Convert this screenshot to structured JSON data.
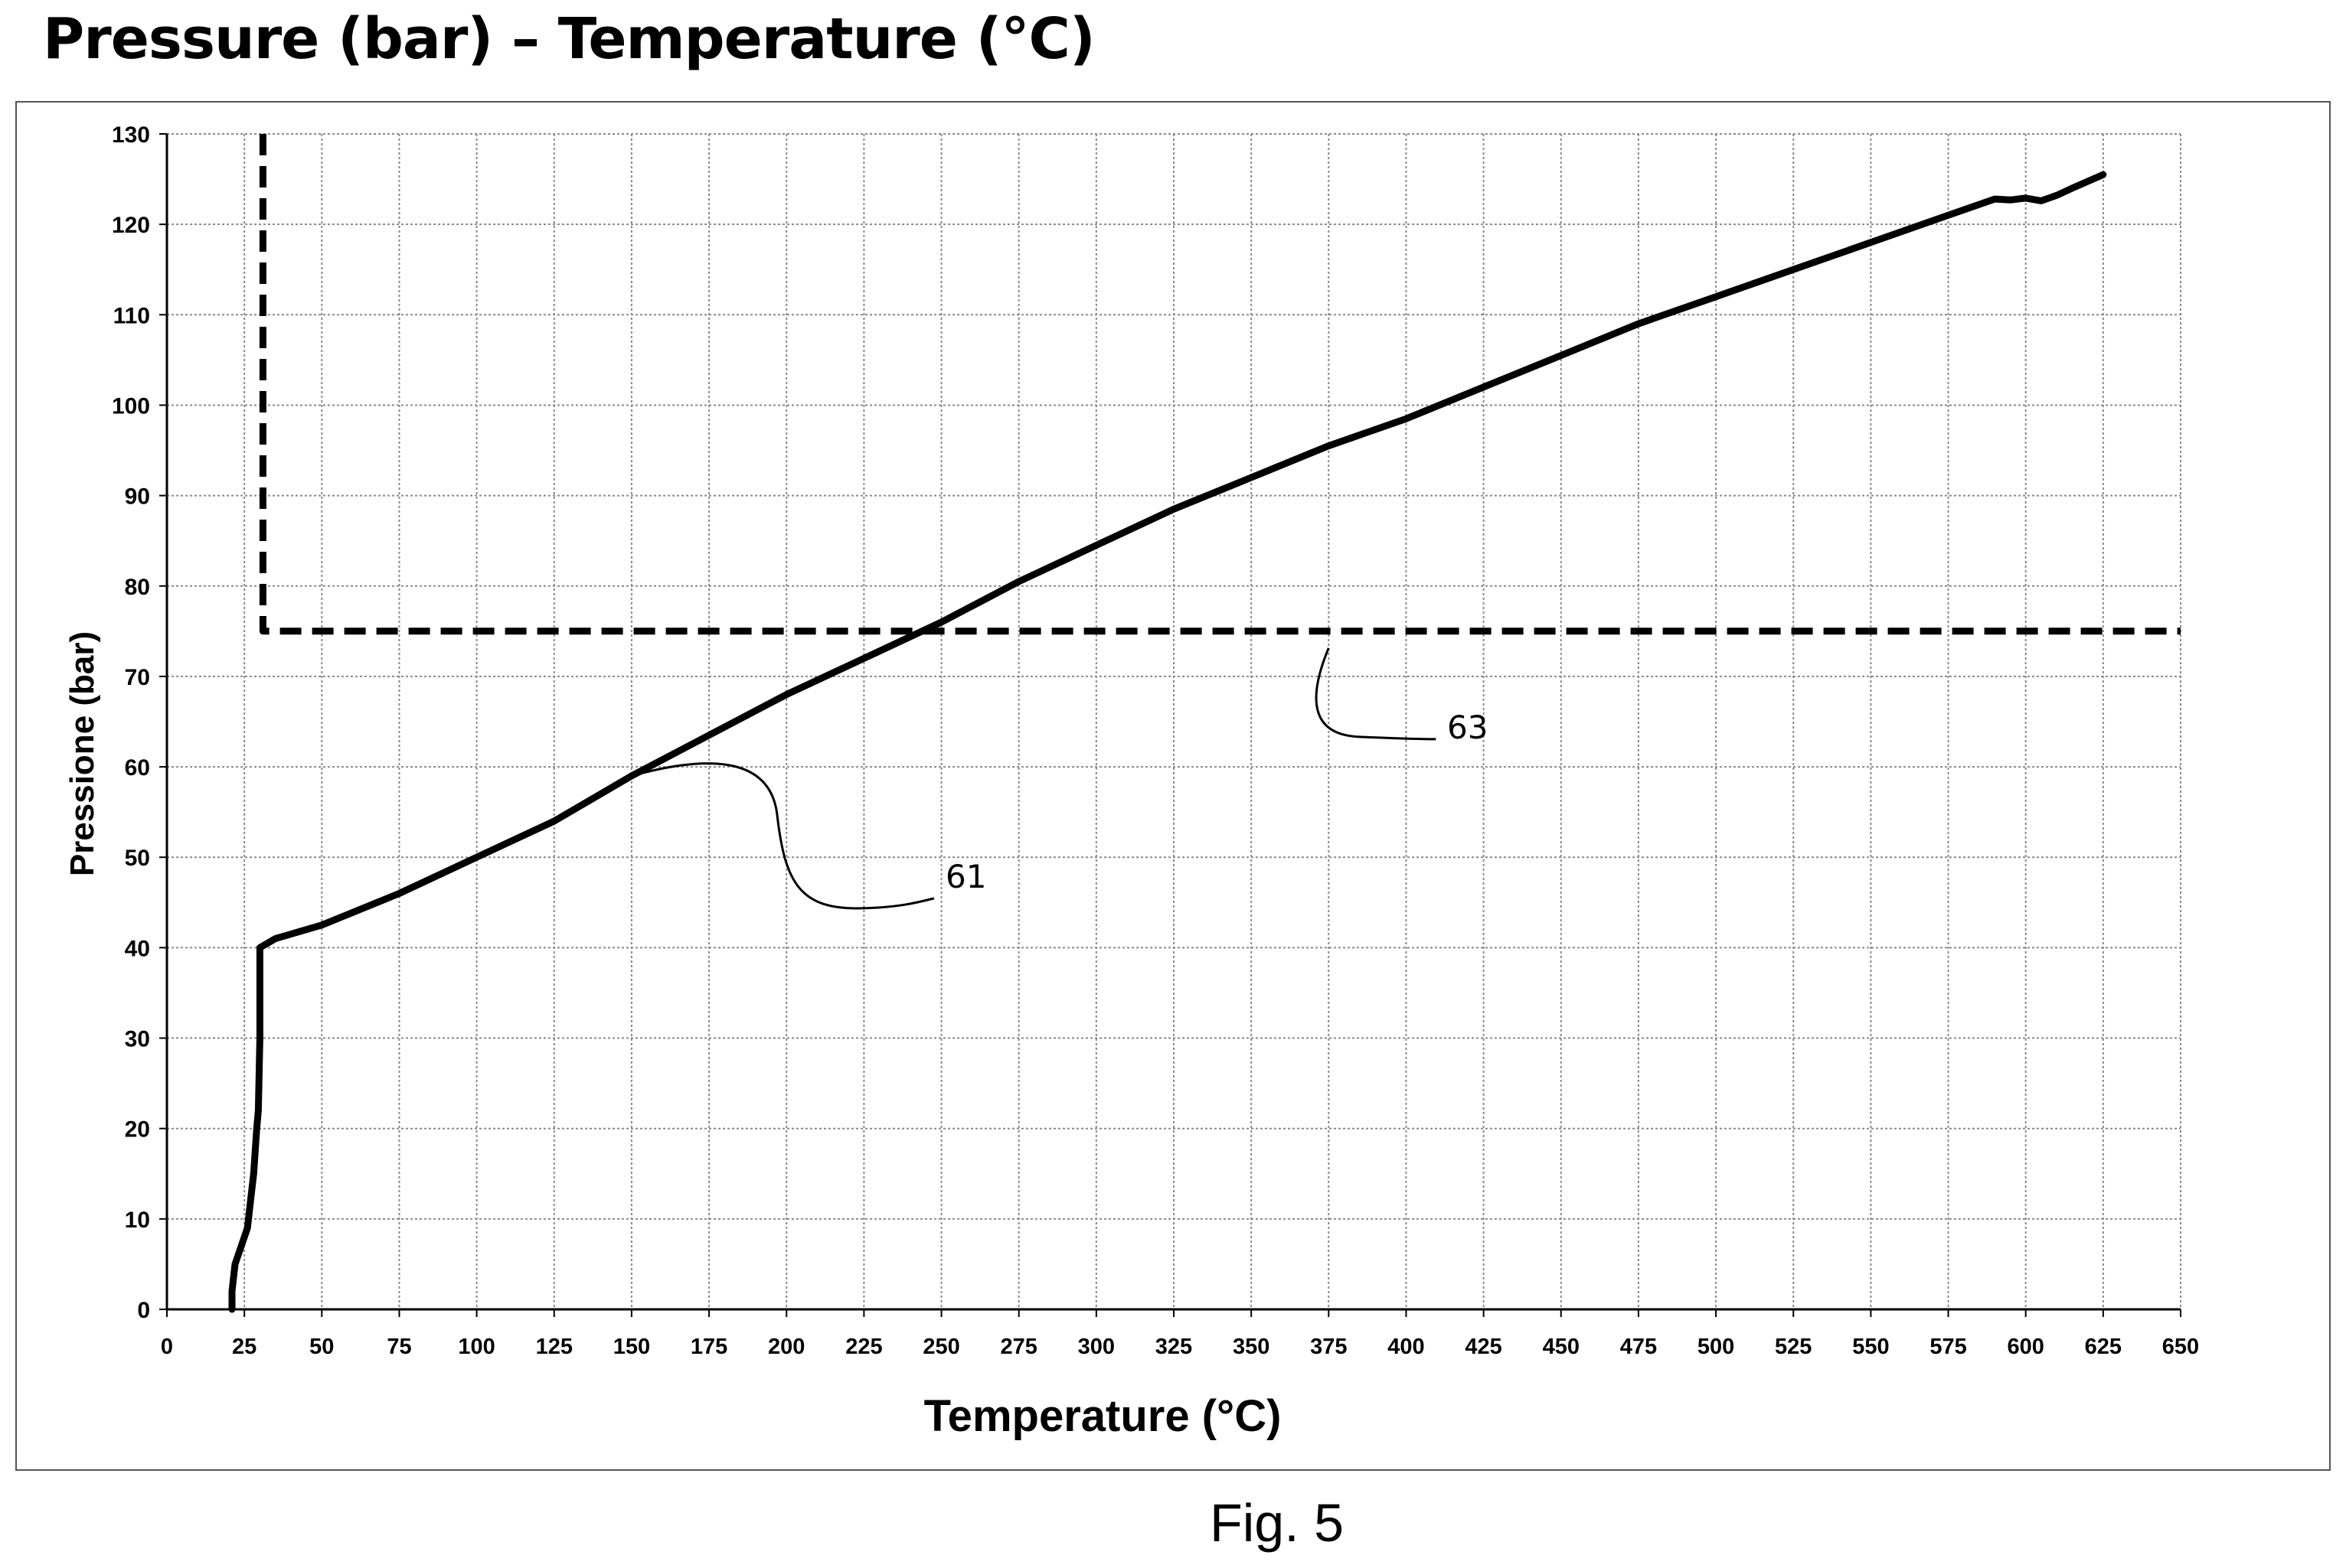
{
  "page": {
    "title": "Pressure (bar) – Temperature (°C)",
    "caption": "Fig. 5"
  },
  "chart_data": {
    "type": "line",
    "xlabel": "Temperature (°C)",
    "ylabel": "Pressione (bar)",
    "xlim": [
      0,
      650
    ],
    "ylim": [
      0,
      130
    ],
    "x_ticks": [
      0,
      25,
      50,
      75,
      100,
      125,
      150,
      175,
      200,
      225,
      250,
      275,
      300,
      325,
      350,
      375,
      400,
      425,
      450,
      475,
      500,
      525,
      550,
      575,
      600,
      625,
      650
    ],
    "y_ticks": [
      0,
      10,
      20,
      30,
      40,
      50,
      60,
      70,
      80,
      90,
      100,
      110,
      120,
      130
    ],
    "grid": true,
    "series": [
      {
        "label": "61",
        "style": "solid",
        "color": "#000000",
        "x": [
          21,
          21,
          22,
          24,
          26,
          27,
          28,
          29,
          29.5,
          30,
          30,
          35,
          50,
          75,
          100,
          125,
          150,
          175,
          200,
          225,
          250,
          275,
          300,
          325,
          350,
          375,
          400,
          425,
          450,
          475,
          500,
          525,
          550,
          575,
          590,
          595,
          600,
          605,
          610,
          615,
          625
        ],
        "y": [
          0,
          2,
          5,
          7,
          9,
          12,
          15,
          20,
          22,
          30,
          40,
          41,
          42.5,
          46,
          50,
          54,
          59,
          63.5,
          68,
          72,
          76,
          80.5,
          84.5,
          88.5,
          92,
          95.5,
          98.5,
          102,
          105.5,
          109,
          112,
          115,
          118,
          121,
          122.8,
          122.7,
          122.9,
          122.6,
          123.2,
          124,
          125.5
        ]
      },
      {
        "label": "63",
        "style": "dashed",
        "color": "#000000",
        "x": [
          31,
          31,
          650
        ],
        "y": [
          130,
          75,
          75
        ]
      }
    ],
    "annotations": [
      {
        "text": "61",
        "points_to_x": 150,
        "points_to_y": 59
      },
      {
        "text": "63",
        "points_to_x": 375,
        "points_to_y": 75
      }
    ]
  }
}
